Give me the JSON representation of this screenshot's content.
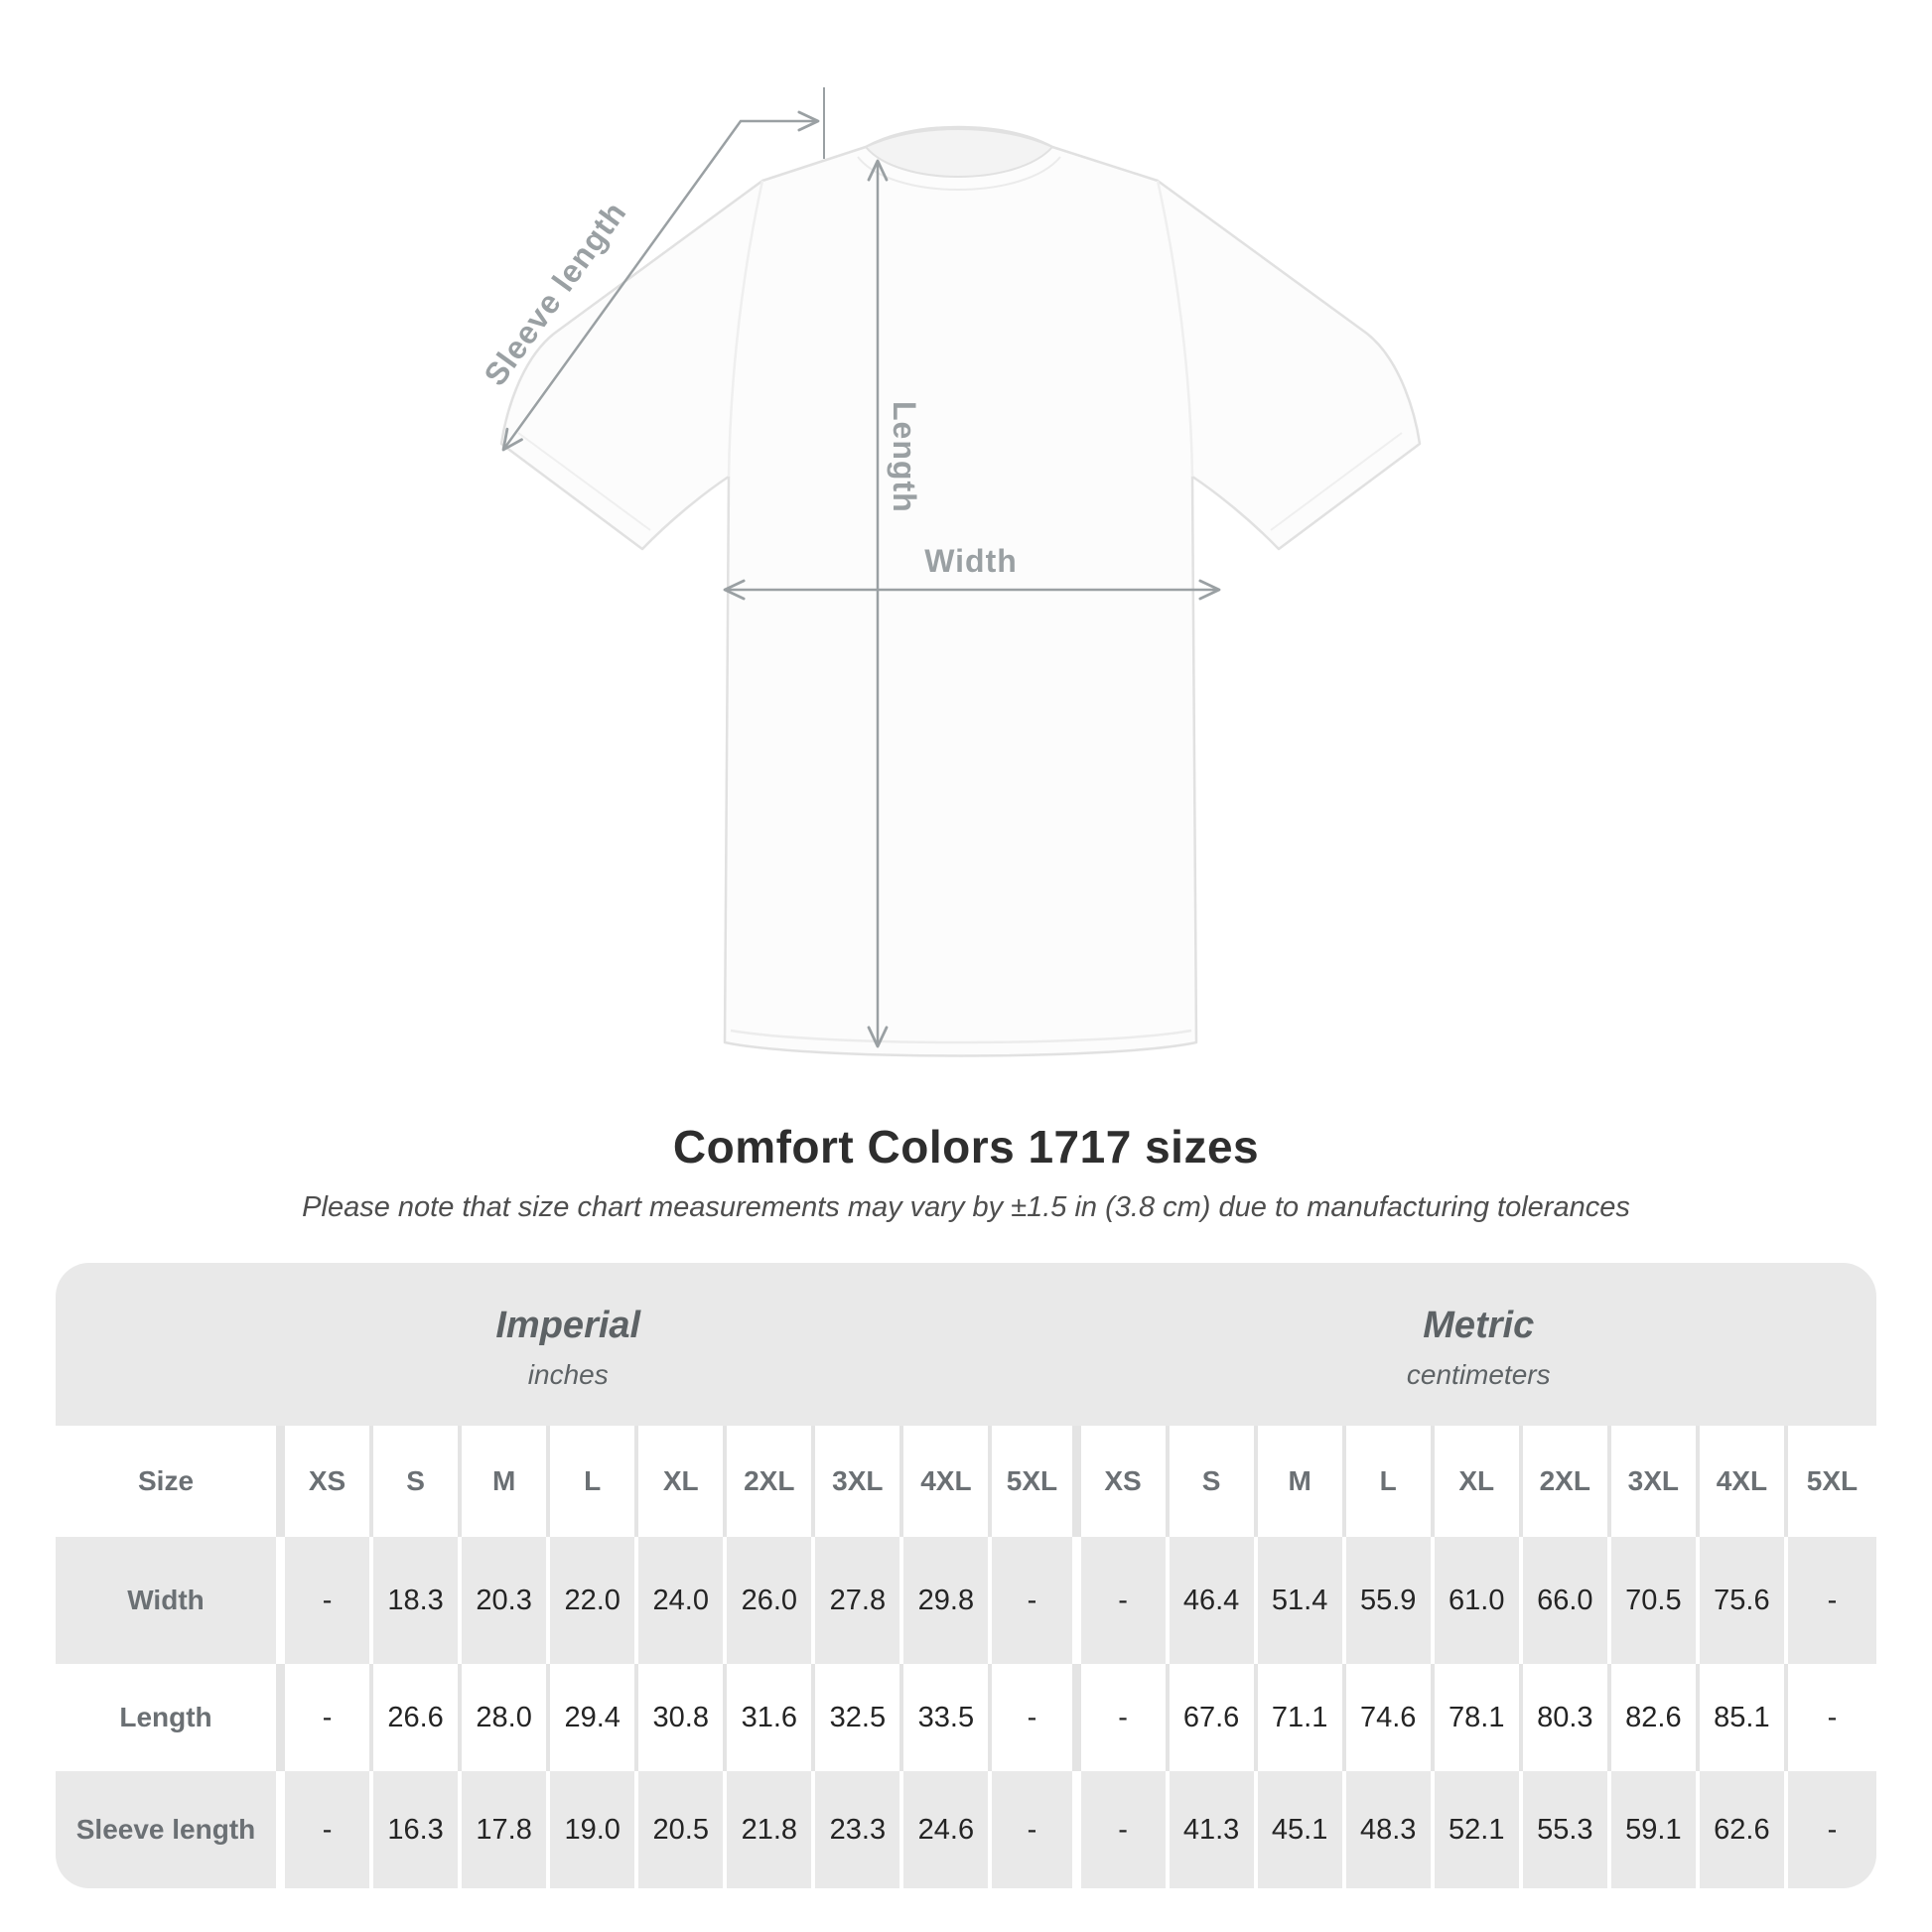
{
  "title": "Comfort Colors 1717 sizes",
  "subtitle": "Please note that size chart measurements may vary by ±1.5 in (3.8 cm) due to manufacturing tolerances",
  "diagram": {
    "labels": {
      "sleeve": "Sleeve length",
      "length": "Length",
      "width": "Width"
    }
  },
  "colors": {
    "table_band_bg": "#e9e9e9",
    "measure_line": "#9aa0a3",
    "value_text": "#242424",
    "label_text": "#6b7074",
    "title_text": "#2e2e2e"
  },
  "chart_data": {
    "type": "table",
    "title": "Comfort Colors 1717 sizes",
    "note": "Please note that size chart measurements may vary by ±1.5 in (3.8 cm) due to manufacturing tolerances",
    "sections": [
      {
        "name": "Imperial",
        "unit": "inches"
      },
      {
        "name": "Metric",
        "unit": "centimeters"
      }
    ],
    "size_label": "Size",
    "sizes": [
      "XS",
      "S",
      "M",
      "L",
      "XL",
      "2XL",
      "3XL",
      "4XL",
      "5XL"
    ],
    "rows": [
      {
        "label": "Width",
        "imperial": [
          "-",
          "18.3",
          "20.3",
          "22.0",
          "24.0",
          "26.0",
          "27.8",
          "29.8",
          "-"
        ],
        "metric": [
          "-",
          "46.4",
          "51.4",
          "55.9",
          "61.0",
          "66.0",
          "70.5",
          "75.6",
          "-"
        ]
      },
      {
        "label": "Length",
        "imperial": [
          "-",
          "26.6",
          "28.0",
          "29.4",
          "30.8",
          "31.6",
          "32.5",
          "33.5",
          "-"
        ],
        "metric": [
          "-",
          "67.6",
          "71.1",
          "74.6",
          "78.1",
          "80.3",
          "82.6",
          "85.1",
          "-"
        ]
      },
      {
        "label": "Sleeve length",
        "imperial": [
          "-",
          "16.3",
          "17.8",
          "19.0",
          "20.5",
          "21.8",
          "23.3",
          "24.6",
          "-"
        ],
        "metric": [
          "-",
          "41.3",
          "45.1",
          "48.3",
          "52.1",
          "55.3",
          "59.1",
          "62.6",
          "-"
        ]
      }
    ]
  }
}
